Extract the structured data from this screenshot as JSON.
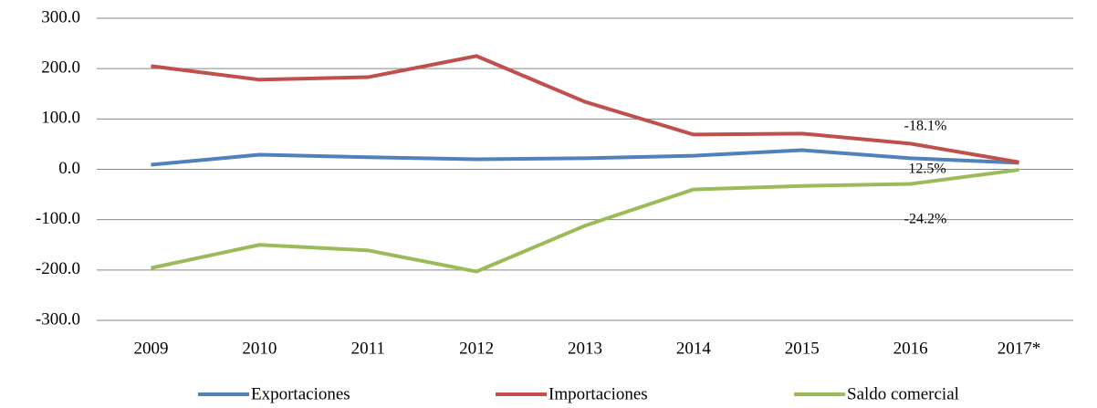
{
  "chart_data": {
    "type": "line",
    "categories": [
      "2009",
      "2010",
      "2011",
      "2012",
      "2013",
      "2014",
      "2015",
      "2016",
      "2017*"
    ],
    "series": [
      {
        "name": "Exportaciones",
        "color": "#4f81bd",
        "values": [
          9,
          29,
          24,
          20,
          22,
          27,
          38,
          22,
          13
        ]
      },
      {
        "name": "Importaciones",
        "color": "#c0504d",
        "values": [
          205,
          178,
          183,
          225,
          134,
          69,
          71,
          51,
          14
        ]
      },
      {
        "name": "Saldo comercial",
        "color": "#9bbb59",
        "values": [
          -196,
          -150,
          -161,
          -203,
          -112,
          -40,
          -33,
          -29,
          -1
        ]
      }
    ],
    "ylim": [
      -300,
      300
    ],
    "yticks": [
      {
        "value": -300,
        "label": "-300.0"
      },
      {
        "value": -200,
        "label": "-200.0"
      },
      {
        "value": -100,
        "label": "-100.0"
      },
      {
        "value": 0,
        "label": "0.0"
      },
      {
        "value": 100,
        "label": "100.0"
      },
      {
        "value": 200,
        "label": "200.0"
      },
      {
        "value": 300,
        "label": "300.0"
      }
    ],
    "grid": true,
    "legend": "bottom",
    "annotations": [
      "-18.1%",
      "12.5%",
      "-24.2%"
    ]
  }
}
